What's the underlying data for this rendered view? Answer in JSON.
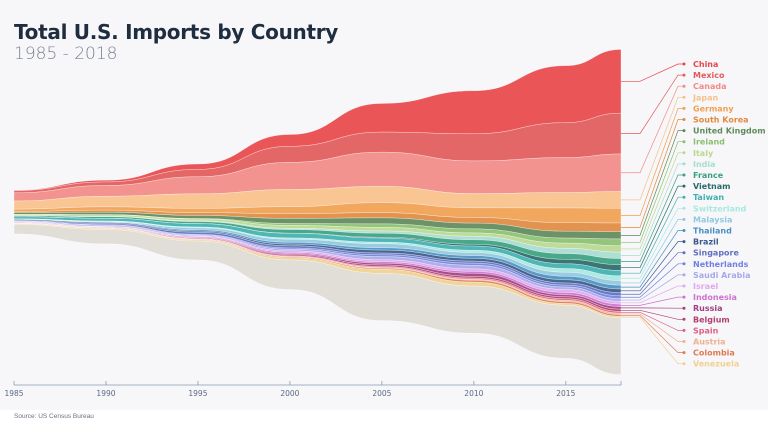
{
  "title": "Total U.S. Imports by Country",
  "subtitle": "1985 - 2018",
  "source": "Source: US Census Bureau",
  "chart_data": {
    "type": "area",
    "subtype": "streamgraph",
    "xlim": [
      1985,
      2018
    ],
    "x": [
      1985,
      1990,
      1995,
      2000,
      2005,
      2010,
      2015,
      2018
    ],
    "x_ticks": [
      "1985",
      "1990",
      "1995",
      "2000",
      "2005",
      "2010",
      "2015"
    ],
    "grid": false,
    "legend": "right",
    "series": [
      {
        "name": "China",
        "color": "#e8474a",
        "values": [
          4,
          15,
          46,
          100,
          243,
          365,
          483,
          540
        ]
      },
      {
        "name": "Mexico",
        "color": "#e25a5a",
        "values": [
          19,
          30,
          62,
          136,
          170,
          230,
          296,
          346
        ]
      },
      {
        "name": "Canada",
        "color": "#f28a86",
        "values": [
          69,
          91,
          145,
          230,
          290,
          277,
          296,
          318
        ]
      },
      {
        "name": "Japan",
        "color": "#f7c08a",
        "values": [
          69,
          90,
          123,
          146,
          138,
          120,
          131,
          142
        ]
      },
      {
        "name": "Germany",
        "color": "#f0a050",
        "values": [
          20,
          28,
          36,
          59,
          85,
          82,
          125,
          125
        ]
      },
      {
        "name": "South Korea",
        "color": "#e08a40",
        "values": [
          10,
          18,
          24,
          40,
          44,
          48,
          72,
          74
        ]
      },
      {
        "name": "United Kingdom",
        "color": "#5f8a5a",
        "values": [
          14,
          20,
          26,
          43,
          51,
          49,
          58,
          61
        ]
      },
      {
        "name": "Ireland",
        "color": "#8ac070",
        "values": [
          1,
          2,
          4,
          16,
          29,
          34,
          43,
          57
        ]
      },
      {
        "name": "Italy",
        "color": "#b8d890",
        "values": [
          9,
          13,
          16,
          25,
          31,
          28,
          44,
          55
        ]
      },
      {
        "name": "India",
        "color": "#a8dcd0",
        "values": [
          2,
          3,
          6,
          11,
          19,
          30,
          45,
          54
        ]
      },
      {
        "name": "France",
        "color": "#3aa080",
        "values": [
          9,
          13,
          17,
          30,
          34,
          38,
          48,
          52
        ]
      },
      {
        "name": "Vietnam",
        "color": "#2a6a6a",
        "values": [
          0,
          0,
          0,
          1,
          7,
          15,
          38,
          49
        ]
      },
      {
        "name": "Taiwan",
        "color": "#40b0b0",
        "values": [
          17,
          23,
          29,
          40,
          35,
          36,
          41,
          46
        ]
      },
      {
        "name": "Switzerland",
        "color": "#a8e8e0",
        "values": [
          3,
          5,
          7,
          10,
          13,
          19,
          31,
          40
        ]
      },
      {
        "name": "Malaysia",
        "color": "#90c8e0",
        "values": [
          2,
          5,
          17,
          26,
          34,
          26,
          34,
          39
        ]
      },
      {
        "name": "Thailand",
        "color": "#4a90c0",
        "values": [
          1,
          3,
          11,
          16,
          20,
          23,
          30,
          32
        ]
      },
      {
        "name": "Brazil",
        "color": "#3a5a8a",
        "values": [
          8,
          8,
          9,
          14,
          25,
          24,
          27,
          31
        ]
      },
      {
        "name": "Singapore",
        "color": "#6070c0",
        "values": [
          4,
          10,
          18,
          19,
          15,
          17,
          18,
          27
        ]
      },
      {
        "name": "Netherlands",
        "color": "#7080e0",
        "values": [
          4,
          5,
          6,
          10,
          15,
          18,
          16,
          24
        ]
      },
      {
        "name": "Saudi Arabia",
        "color": "#a8a8e8",
        "values": [
          4,
          10,
          8,
          14,
          27,
          31,
          22,
          24
        ]
      },
      {
        "name": "Israel",
        "color": "#e0a8f0",
        "values": [
          2,
          3,
          6,
          13,
          17,
          21,
          24,
          22
        ]
      },
      {
        "name": "Indonesia",
        "color": "#d070d0",
        "values": [
          5,
          3,
          7,
          11,
          12,
          16,
          20,
          21
        ]
      },
      {
        "name": "Russia",
        "color": "#a04080",
        "values": [
          0,
          1,
          4,
          8,
          15,
          26,
          17,
          22
        ]
      },
      {
        "name": "Belgium",
        "color": "#b04070",
        "values": [
          3,
          4,
          6,
          10,
          13,
          15,
          16,
          19
        ]
      },
      {
        "name": "Spain",
        "color": "#e06080",
        "values": [
          2,
          3,
          4,
          6,
          8,
          10,
          14,
          15
        ]
      },
      {
        "name": "Austria",
        "color": "#f0b090",
        "values": [
          1,
          1,
          2,
          3,
          7,
          8,
          11,
          13
        ]
      },
      {
        "name": "Colombia",
        "color": "#e07a50",
        "values": [
          2,
          3,
          4,
          7,
          9,
          16,
          15,
          14
        ]
      },
      {
        "name": "Venezuela",
        "color": "#f0d090",
        "values": [
          6,
          9,
          10,
          19,
          34,
          33,
          15,
          13
        ]
      },
      {
        "color": "#dedad4",
        "values": [
          80,
          120,
          160,
          250,
          400,
          400,
          450,
          480
        ]
      }
    ]
  }
}
